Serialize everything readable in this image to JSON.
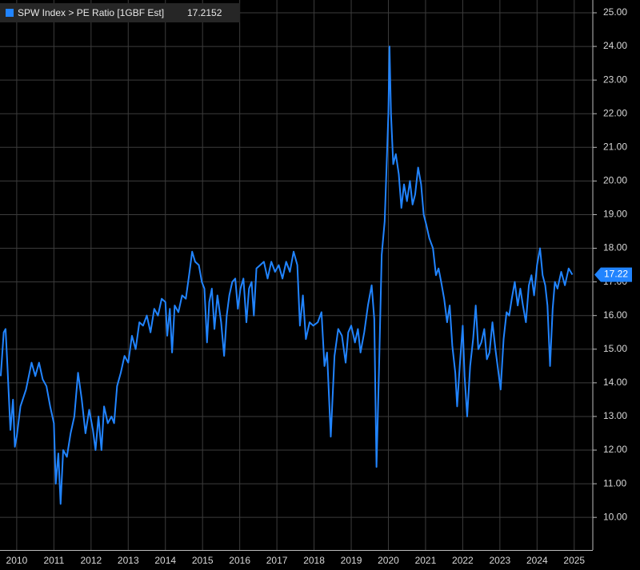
{
  "chart_data": {
    "type": "line",
    "series": [
      {
        "name": "SPW Index > PE Ratio [1GBF Est]",
        "color": "#2184ff",
        "values": [
          14.2,
          15.5,
          15.6,
          14.5,
          12.6,
          13.5,
          12.1,
          12.4,
          13.3,
          13.8,
          14.6,
          14.2,
          14.6,
          14.1,
          13.9,
          13.3,
          12.8,
          11.0,
          11.9,
          10.4,
          12.0,
          11.8,
          12.5,
          13.0,
          14.3,
          13.5,
          12.5,
          13.2,
          12.6,
          12.0,
          13.0,
          12.0,
          13.3,
          12.8,
          13.0,
          12.8,
          13.9,
          14.3,
          14.8,
          14.6,
          15.4,
          15.0,
          15.8,
          15.7,
          16.0,
          15.5,
          16.2,
          16.0,
          16.5,
          16.4,
          15.4,
          16.2,
          14.9,
          16.3,
          16.1,
          16.6,
          16.5,
          17.3,
          17.9,
          17.6,
          17.5,
          17.0,
          16.8,
          15.2,
          16.4,
          16.8,
          15.6,
          16.6,
          15.8,
          14.8,
          16.0,
          16.6,
          17.0,
          17.1,
          16.2,
          16.8,
          17.1,
          15.8,
          16.8,
          17.0,
          16.0,
          17.4,
          17.5,
          17.6,
          17.1,
          17.6,
          17.3,
          17.5,
          17.1,
          17.6,
          17.3,
          17.9,
          17.5,
          15.7,
          16.6,
          15.3,
          15.8,
          15.7,
          15.8,
          16.1,
          14.5,
          14.9,
          12.4,
          14.8,
          15.6,
          15.4,
          14.6,
          15.5,
          15.7,
          15.2,
          15.6,
          14.9,
          15.5,
          16.3,
          16.9,
          15.9,
          11.5,
          14.5,
          17.8,
          18.8,
          22.0,
          24.0,
          22.0,
          20.5,
          20.8,
          20.2,
          19.2,
          19.9,
          19.4,
          20.0,
          19.3,
          19.6,
          20.4,
          19.9,
          19.0,
          18.7,
          18.3,
          18.0,
          17.2,
          17.4,
          17.0,
          16.5,
          15.8,
          16.3,
          15.1,
          14.3,
          13.3,
          14.5,
          15.7,
          14.2,
          13.0,
          14.5,
          15.3,
          16.3,
          15.0,
          15.2,
          15.6,
          14.7,
          14.9,
          15.8,
          15.0,
          14.4,
          13.8,
          15.3,
          16.1,
          16.0,
          16.5,
          17.0,
          16.3,
          16.8,
          16.3,
          15.8,
          16.9,
          17.2,
          16.6,
          17.5,
          18.0,
          17.2,
          16.9,
          16.3,
          14.5,
          16.2,
          17.0,
          16.8,
          17.3,
          16.9,
          17.4,
          17.2152
        ]
      }
    ],
    "x": [
      2010.07,
      2010.15,
      2010.2,
      2010.25,
      2010.33,
      2010.4,
      2010.45,
      2010.5,
      2010.6,
      2010.75,
      2010.9,
      2011.0,
      2011.1,
      2011.2,
      2011.3,
      2011.4,
      2011.5,
      2011.55,
      2011.62,
      2011.68,
      2011.75,
      2011.85,
      2011.95,
      2012.05,
      2012.15,
      2012.25,
      2012.35,
      2012.45,
      2012.55,
      2012.62,
      2012.7,
      2012.78,
      2012.85,
      2012.95,
      2013.05,
      2013.12,
      2013.2,
      2013.3,
      2013.4,
      2013.5,
      2013.6,
      2013.7,
      2013.8,
      2013.9,
      2014.0,
      2014.1,
      2014.2,
      2014.3,
      2014.4,
      2014.5,
      2014.55,
      2014.62,
      2014.68,
      2014.75,
      2014.85,
      2014.95,
      2015.05,
      2015.15,
      2015.22,
      2015.3,
      2015.4,
      2015.48,
      2015.55,
      2015.62,
      2015.68,
      2015.75,
      2015.82,
      2015.9,
      2016.0,
      2016.08,
      2016.15,
      2016.22,
      2016.3,
      2016.38,
      2016.45,
      2016.52,
      2016.6,
      2016.68,
      2016.75,
      2016.82,
      2016.88,
      2016.95,
      2017.05,
      2017.15,
      2017.25,
      2017.35,
      2017.45,
      2017.55,
      2017.65,
      2017.75,
      2017.85,
      2017.95,
      2018.05,
      2018.12,
      2018.2,
      2018.28,
      2018.38,
      2018.48,
      2018.6,
      2018.7,
      2018.78,
      2018.85,
      2018.95,
      2019.05,
      2019.15,
      2019.25,
      2019.35,
      2019.42,
      2019.5,
      2019.6,
      2019.68,
      2019.75,
      2019.85,
      2019.95,
      2020.05,
      2020.12,
      2020.18,
      2020.25,
      2020.32,
      2020.4,
      2020.5,
      2020.53,
      2020.57,
      2020.63,
      2020.7,
      2020.78,
      2020.85,
      2020.92,
      2021.0,
      2021.08,
      2021.15,
      2021.22,
      2021.3,
      2021.38,
      2021.45,
      2021.52,
      2021.6,
      2021.7,
      2021.78,
      2021.85,
      2021.92,
      2022.0,
      2022.08,
      2022.15,
      2022.22,
      2022.3,
      2022.35,
      2022.42,
      2022.5,
      2022.55,
      2022.62,
      2022.7,
      2022.78,
      2022.85,
      2022.92,
      2023.0,
      2023.08,
      2023.15,
      2023.22,
      2023.3,
      2023.38,
      2023.45,
      2023.52,
      2023.6,
      2023.68,
      2023.75,
      2023.82,
      2023.9,
      2023.98,
      2024.05,
      2024.12,
      2024.2,
      2024.28,
      2024.35,
      2024.42,
      2024.5,
      2024.58,
      2024.65,
      2024.72,
      2024.78,
      2024.85,
      2024.92,
      2024.98,
      2025.05,
      2025.15,
      2025.25,
      2025.35,
      2025.45
    ],
    "last_value_label": "17.22",
    "xlim": [
      2010.05,
      2026.0
    ],
    "xticks": [
      {
        "value": 2010.5,
        "label": "2010"
      },
      {
        "value": 2011.5,
        "label": "2011"
      },
      {
        "value": 2012.5,
        "label": "2012"
      },
      {
        "value": 2013.5,
        "label": "2013"
      },
      {
        "value": 2014.5,
        "label": "2014"
      },
      {
        "value": 2015.5,
        "label": "2015"
      },
      {
        "value": 2016.5,
        "label": "2016"
      },
      {
        "value": 2017.5,
        "label": "2017"
      },
      {
        "value": 2018.5,
        "label": "2018"
      },
      {
        "value": 2019.5,
        "label": "2019"
      },
      {
        "value": 2020.5,
        "label": "2020"
      },
      {
        "value": 2021.5,
        "label": "2021"
      },
      {
        "value": 2022.5,
        "label": "2022"
      },
      {
        "value": 2023.5,
        "label": "2023"
      },
      {
        "value": 2024.5,
        "label": "2024"
      },
      {
        "value": 2025.5,
        "label": "2025"
      }
    ],
    "ylim": [
      9.03,
      25.38
    ],
    "yticks": [
      {
        "value": 10,
        "label": "10.00"
      },
      {
        "value": 11,
        "label": "11.00"
      },
      {
        "value": 12,
        "label": "12.00"
      },
      {
        "value": 13,
        "label": "13.00"
      },
      {
        "value": 14,
        "label": "14.00"
      },
      {
        "value": 15,
        "label": "15.00"
      },
      {
        "value": 16,
        "label": "16.00"
      },
      {
        "value": 17,
        "label": "17.00"
      },
      {
        "value": 18,
        "label": "18.00"
      },
      {
        "value": 19,
        "label": "19.00"
      },
      {
        "value": 20,
        "label": "20.00"
      },
      {
        "value": 21,
        "label": "21.00"
      },
      {
        "value": 22,
        "label": "22.00"
      },
      {
        "value": 23,
        "label": "23.00"
      },
      {
        "value": 24,
        "label": "24.00"
      },
      {
        "value": 25,
        "label": "25.00"
      }
    ],
    "grid": true
  }
}
